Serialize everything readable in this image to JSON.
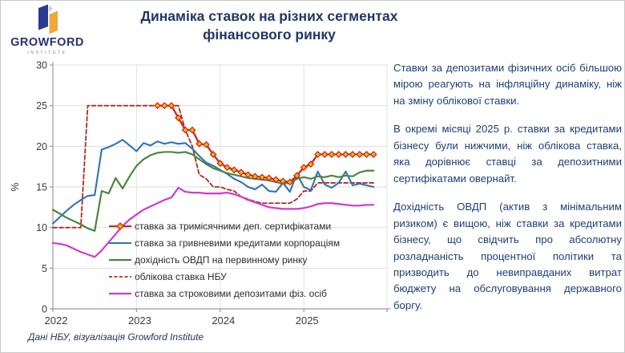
{
  "header": {
    "logo": {
      "brand": "GROWFORD",
      "sub": "INSTITUTE"
    },
    "title": "Динаміка ставок на різних сегментах фінансового ринку"
  },
  "chart_data": {
    "type": "line",
    "title": "",
    "ylabel": "%",
    "ylim": [
      0,
      30
    ],
    "ytick_step": 5,
    "x_unit": "month",
    "x_start": "2022-01",
    "x_end": "2025-11",
    "year_ticks": [
      "2022",
      "2023",
      "2024",
      "2025"
    ],
    "grid": true,
    "legend_position": "inside-bottom-left",
    "draw_order": [
      3,
      1,
      2,
      4,
      0
    ],
    "series": [
      {
        "name": "ставка за тримісячними деп. сертифікатами",
        "color": "#d52b1e",
        "width": 2.4,
        "marker": "diamond",
        "marker_fill": "#ffc000",
        "start": 15,
        "values": [
          25,
          25,
          25,
          23.5,
          22,
          22,
          20.3,
          20.2,
          19,
          17.9,
          17.4,
          17.1,
          16.8,
          16.5,
          16.3,
          16.2,
          16.1,
          15.9,
          15.7,
          15.6,
          16.4,
          17.4,
          17.8,
          19,
          19,
          19,
          19,
          19,
          19,
          19,
          19,
          19
        ]
      },
      {
        "name": "ставка за гривневими кредитами корпораціям",
        "color": "#2e74b5",
        "width": 2.1,
        "start": 0,
        "values": [
          10.5,
          11.3,
          12.1,
          12.8,
          13.4,
          13.9,
          14,
          19.6,
          19.9,
          20.3,
          20.8,
          20.1,
          19.4,
          20.4,
          20.1,
          20.6,
          20.3,
          20.5,
          20.3,
          20.4,
          19.7,
          18.8,
          18,
          17.6,
          17.1,
          16.6,
          16,
          15.6,
          15,
          14.7,
          15.3,
          14.5,
          14.4,
          15.5,
          14.4,
          16.6,
          15,
          14.6,
          16.9,
          15.3,
          14.9,
          15.5,
          16.9,
          15.2,
          15.4,
          15.2,
          15
        ]
      },
      {
        "name": "дохідність ОВДП на первинному ринку",
        "color": "#4e8542",
        "width": 2.2,
        "start": 0,
        "values": [
          12.2,
          11.7,
          11.2,
          10.8,
          10.4,
          9.9,
          9.6,
          14.5,
          14.2,
          16.1,
          14.8,
          16.3,
          17.6,
          18.4,
          18.9,
          19.2,
          19.3,
          19.3,
          19.2,
          19.3,
          19,
          18.4,
          17.8,
          17.3,
          17,
          16.7,
          16.5,
          16.3,
          16.1,
          16,
          15.9,
          15.8,
          15.6,
          15.4,
          15.5,
          16,
          16.2,
          16,
          16.3,
          16.2,
          16.4,
          16.2,
          16.4,
          16.3,
          16.8,
          17,
          17
        ]
      },
      {
        "name": "облікова ставка НБУ",
        "color": "#b22a22",
        "width": 1.8,
        "dash": "5,3",
        "start": 0,
        "values": [
          10,
          10,
          10,
          10,
          10,
          25,
          25,
          25,
          25,
          25,
          25,
          25,
          25,
          25,
          25,
          25,
          25,
          25,
          25,
          22,
          20,
          16.5,
          16,
          15,
          15,
          14.7,
          14.5,
          13.8,
          13.5,
          13.2,
          13,
          13,
          13,
          13,
          13,
          13.5,
          14.5,
          14.5,
          15.5,
          15.5,
          15.5,
          15.5,
          15.5,
          15.5,
          15.5,
          15.5,
          15.5
        ]
      },
      {
        "name": "ставка за строковими депозитами фіз. осіб",
        "color": "#ce3bce",
        "width": 2.2,
        "start": 0,
        "values": [
          8.1,
          8,
          7.8,
          7.4,
          7,
          6.7,
          6.4,
          7.2,
          8.2,
          9.2,
          10.2,
          11,
          11.6,
          12.2,
          12.6,
          13,
          13.4,
          13.7,
          14.9,
          14.4,
          14.3,
          14.3,
          14.2,
          14.2,
          14.2,
          14.3,
          14.1,
          13.8,
          13.4,
          13.1,
          12.8,
          12.5,
          12.4,
          12.3,
          12.3,
          12.3,
          12.4,
          12.6,
          12.9,
          13,
          13,
          12.9,
          12.8,
          12.7,
          12.7,
          12.8,
          12.8
        ]
      }
    ]
  },
  "panel": {
    "paragraphs": [
      "Ставки за депозитами фізичних осіб більшою мірою реагують на інфляційну динаміку, ніж на зміну облікової ставки.",
      "В окремі місяці 2025 р. ставки за кредитами бізнесу були нижчими, ніж облікова ставка, яка дорівнює ставці за депозитними сертифікатами овернайт.",
      "Дохідність ОВДП (актив з мінімальним ризиком) є вищою, ніж ставки за кредитами бізнесу, що свідчить про абсолютну розладнаність процентної політики та призводить до невиправданих витрат бюджету на обслуговування державного боргу."
    ]
  },
  "footer": {
    "caption": "Дані НБУ, візуалізація Growford Institute"
  },
  "colors": {
    "title": "#1f3864",
    "body_text": "#1f3f77",
    "logo_navy": "#2b3990",
    "logo_orange": "#f0a73c"
  }
}
